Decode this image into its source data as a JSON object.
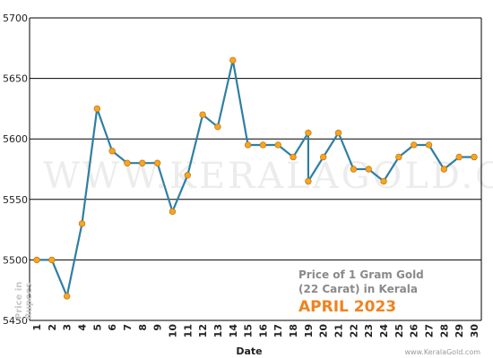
{
  "chart_data": {
    "type": "line",
    "title": "Price of 1 Gram Gold",
    "subtitle": "(22 Carat) in Kerala",
    "period": "APRIL 2023",
    "xlabel": "Date",
    "ylabel": "Price in Rupees",
    "watermark": "WWW.KERALAGOLD.COM",
    "credit": "www.KeralaGold.com",
    "ylim": [
      5450,
      5700
    ],
    "yticks": [
      5450,
      5500,
      5550,
      5600,
      5650,
      5700
    ],
    "grid": true,
    "x": [
      "1",
      "2",
      "3",
      "4",
      "5",
      "6",
      "7",
      "8",
      "9",
      "10",
      "11",
      "12",
      "13",
      "14",
      "15",
      "16",
      "17",
      "18",
      "19",
      "19",
      "20",
      "21",
      "22",
      "23",
      "24",
      "25",
      "26",
      "27",
      "28",
      "29",
      "30"
    ],
    "xticks": [
      "1",
      "2",
      "3",
      "4",
      "5",
      "6",
      "7",
      "8",
      "9",
      "10",
      "11",
      "12",
      "13",
      "14",
      "15",
      "16",
      "17",
      "18",
      "19",
      "20",
      "21",
      "22",
      "23",
      "24",
      "25",
      "26",
      "27",
      "28",
      "29",
      "30"
    ],
    "series": [
      {
        "values": [
          5500,
          5500,
          5470,
          5530,
          5625,
          5590,
          5580,
          5580,
          5580,
          5540,
          5570,
          5620,
          5610,
          5665,
          5595,
          5595,
          5595,
          5585,
          5605,
          5565,
          5585,
          5605,
          5575,
          5575,
          5565,
          5585,
          5595,
          5595,
          5575,
          5585,
          5585
        ]
      }
    ],
    "colors": {
      "line": "#2f7fa3",
      "marker": "#f5a623",
      "marker_edge": "#c97a12",
      "grid": "#000000"
    }
  }
}
